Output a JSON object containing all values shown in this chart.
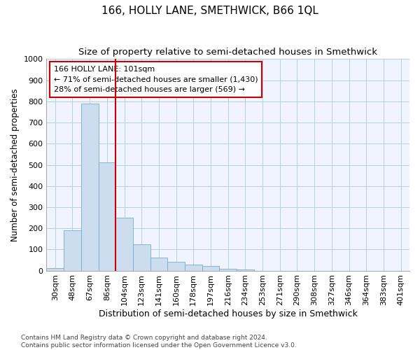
{
  "title": "166, HOLLY LANE, SMETHWICK, B66 1QL",
  "subtitle": "Size of property relative to semi-detached houses in Smethwick",
  "xlabel": "Distribution of semi-detached houses by size in Smethwick",
  "ylabel": "Number of semi-detached properties",
  "categories": [
    "30sqm",
    "48sqm",
    "67sqm",
    "86sqm",
    "104sqm",
    "123sqm",
    "141sqm",
    "160sqm",
    "178sqm",
    "197sqm",
    "216sqm",
    "234sqm",
    "253sqm",
    "271sqm",
    "290sqm",
    "308sqm",
    "327sqm",
    "346sqm",
    "364sqm",
    "383sqm",
    "401sqm"
  ],
  "values": [
    12,
    190,
    790,
    510,
    250,
    125,
    60,
    40,
    30,
    22,
    10,
    5,
    0,
    0,
    0,
    0,
    0,
    0,
    0,
    0,
    0
  ],
  "bar_color": "#ccddef",
  "bar_edge_color": "#7aaac8",
  "vline_color": "#cc0000",
  "annotation_line1": "166 HOLLY LANE: 101sqm",
  "annotation_line2": "← 71% of semi-detached houses are smaller (1,430)",
  "annotation_line3": "28% of semi-detached houses are larger (569) →",
  "annotation_box_color": "#ffffff",
  "annotation_box_edge": "#cc0000",
  "ylim": [
    0,
    1000
  ],
  "yticks": [
    0,
    100,
    200,
    300,
    400,
    500,
    600,
    700,
    800,
    900,
    1000
  ],
  "footer": "Contains HM Land Registry data © Crown copyright and database right 2024.\nContains public sector information licensed under the Open Government Licence v3.0.",
  "title_fontsize": 11,
  "subtitle_fontsize": 9.5,
  "xlabel_fontsize": 9,
  "ylabel_fontsize": 8.5,
  "tick_fontsize": 8,
  "annotation_fontsize": 8,
  "footer_fontsize": 6.5,
  "bg_color": "#f0f4ff"
}
